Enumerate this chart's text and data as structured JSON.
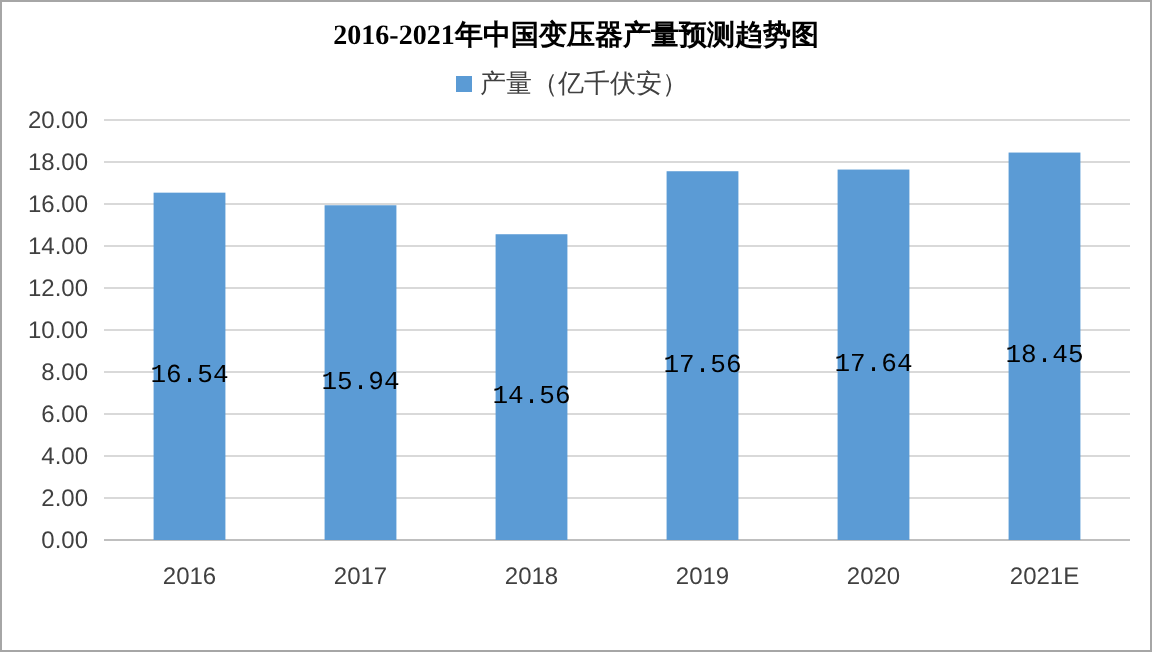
{
  "chart_data": {
    "type": "bar",
    "title": "2016-2021年中国变压器产量预测趋势图",
    "categories": [
      "2016",
      "2017",
      "2018",
      "2019",
      "2020",
      "2021E"
    ],
    "series": [
      {
        "name": "产量（亿千伏安）",
        "color": "#5b9bd5",
        "values": [
          16.54,
          15.94,
          14.56,
          17.56,
          17.64,
          18.45
        ]
      }
    ],
    "ylim": [
      0,
      20
    ],
    "yticks": [
      {
        "value": 0,
        "label": "0.00"
      },
      {
        "value": 2,
        "label": "2.00"
      },
      {
        "value": 4,
        "label": "4.00"
      },
      {
        "value": 6,
        "label": "6.00"
      },
      {
        "value": 8,
        "label": "8.00"
      },
      {
        "value": 10,
        "label": "10.00"
      },
      {
        "value": 12,
        "label": "12.00"
      },
      {
        "value": 14,
        "label": "14.00"
      },
      {
        "value": 16,
        "label": "16.00"
      },
      {
        "value": 18,
        "label": "18.00"
      },
      {
        "value": 20,
        "label": "20.00"
      }
    ],
    "grid": "y",
    "legend": "top",
    "data_labels": true
  }
}
